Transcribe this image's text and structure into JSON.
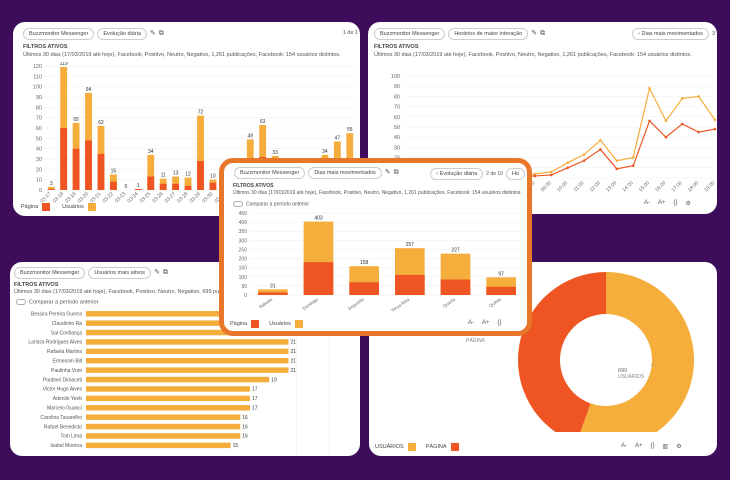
{
  "card1": {
    "app": "Buzzmonitor Messenger",
    "view": "Evolução diária",
    "page": "1 de 1",
    "filters_title": "FILTROS ATIVOS",
    "filters_desc": "Últimos 30 dias (17/03/2019 até hoje), Facebook, Positivo, Neutro, Negativo, 1,261 publicações, Facebook: 154 usuários distintos.",
    "legend": [
      "Página",
      "Usuários"
    ],
    "chart_data": {
      "type": "bar",
      "categories": [
        "03-17",
        "03-18",
        "03-19",
        "03-20",
        "03-21",
        "03-22",
        "03-23",
        "03-24",
        "03-25",
        "03-26",
        "03-27",
        "03-28",
        "03-29",
        "03-30",
        "03-31",
        "04-01",
        "04-02",
        "04-03",
        "04-04",
        "04-05",
        "04-06",
        "04-07",
        "04-08",
        "04-09",
        "04-10"
      ],
      "series": [
        {
          "name": "Página",
          "values": [
            1,
            60,
            40,
            48,
            35,
            8,
            0,
            1,
            13,
            6,
            6,
            4,
            28,
            7,
            4,
            2,
            25,
            32,
            8,
            10,
            5,
            4,
            20,
            10,
            15
          ]
        },
        {
          "name": "Usuários",
          "values": [
            3,
            119,
            65,
            94,
            62,
            15,
            0,
            1,
            34,
            11,
            13,
            12,
            72,
            10,
            5,
            2,
            49,
            63,
            33,
            24,
            23,
            6,
            34,
            47,
            55
          ]
        }
      ],
      "labels": [
        "3",
        "119",
        "65",
        "94",
        "62",
        "15",
        "0",
        "1",
        "34",
        "11",
        "13",
        "12",
        "72",
        "10",
        "5",
        "2",
        "49",
        "63",
        "33",
        "24",
        "23",
        "6",
        "34",
        "47",
        "55"
      ],
      "y_ticks": [
        "0",
        "10",
        "20",
        "30",
        "40",
        "50",
        "60",
        "70",
        "80",
        "90",
        "100",
        "110",
        "120"
      ],
      "ylim": [
        0,
        120
      ]
    }
  },
  "card2": {
    "app": "Buzzmonitor Messenger",
    "view": "Horários de maior interação",
    "nav": "Dias mais movimentados",
    "page": "3",
    "filters_title": "FILTROS ATIVOS",
    "filters_desc": "Últimos 30 dias (17/03/2019 até hoje), Facebook, Positivo, Neutro, Negativo, 1,261 publicações, Facebook: 154 usuários distintos.",
    "chart_data": {
      "type": "line",
      "x": [
        "00:00",
        "01:00",
        "02:00",
        "03:00",
        "04:00",
        "05:00",
        "06:00",
        "07:00",
        "08:00",
        "09:00",
        "10:00",
        "11:00",
        "12:00",
        "13:00",
        "14:00",
        "15:00",
        "16:00",
        "17:00",
        "18:00",
        "19:00"
      ],
      "series": [
        {
          "name": "Usuários",
          "values": [
            2,
            6,
            6,
            5,
            3,
            3,
            3,
            3,
            4,
            6,
            15,
            23,
            37,
            17,
            20,
            88,
            56,
            78,
            80,
            57
          ]
        },
        {
          "name": "Página",
          "values": [
            1,
            4,
            6,
            4,
            2,
            2,
            2,
            2,
            2,
            3,
            10,
            17,
            28,
            9,
            12,
            56,
            40,
            53,
            45,
            48
          ]
        }
      ],
      "y_ticks": [
        "0",
        "10",
        "20",
        "30",
        "40",
        "50",
        "60",
        "70",
        "80",
        "90",
        "100"
      ],
      "ylim": [
        0,
        100
      ]
    },
    "zoom": [
      "A-",
      "A+"
    ]
  },
  "card3": {
    "app": "Buzzmonitor Messenger",
    "view": "Usuários mais ativos",
    "filters_title": "FILTROS ATIVOS",
    "filters_desc": "Últimos 30 dias (17/03/2019 até hoje), Facebook, Positivo, Neutro, Negativo, 699 publicações, Facebook:",
    "compare": "Comparar a período anterior",
    "chart_data": {
      "type": "bar",
      "categories": [
        "Bessira Pereira Guerra",
        "Claudinho Ra",
        "Sai Confiança",
        "Larissa Rodrigues Alves",
        "Rafaela Martins",
        "Ermesom Bill",
        "Paulinha Vum",
        "Pardinei Dimaceti",
        "Victor Hugo Alves",
        "Adenilo Yeeb",
        "Marcelo Guanci",
        "Carolina Tavarelho",
        "Rafael Benedicto",
        "Tom Lima",
        "Isabel Moreira"
      ],
      "values": [
        22,
        22,
        22,
        21,
        21,
        21,
        21,
        19,
        17,
        17,
        17,
        16,
        16,
        16,
        15
      ],
      "labels": [
        "",
        "",
        "",
        "21",
        "21",
        "21",
        "21",
        "19",
        "17",
        "17",
        "17",
        "16",
        "16",
        "16",
        "15"
      ]
    }
  },
  "card4": {
    "zoom": [
      "A-",
      "A+"
    ],
    "legend": [
      "USUÁRIOS",
      "PÁGINA"
    ],
    "chart_data": {
      "type": "pie",
      "labels": [
        "USUÁRIOS",
        "PÁGINA"
      ],
      "values": [
        699,
        562
      ],
      "value_labels": [
        "699",
        ""
      ]
    }
  },
  "card5": {
    "app": "Buzzmonitor Messenger",
    "view": "Dias mais movimentados",
    "nav": "Evolução diária",
    "page": "2 de 10",
    "next": "Ho",
    "filters_title": "FILTROS ATIVOS",
    "filters_desc": "Últimos 30 dias (17/03/2019 até hoje), Facebook, Positivo, Neutro, Negativo, 1,261 publicações, Facebook: 154 usuários distintos.",
    "compare": "Comparar a período anterior",
    "legend": [
      "Página",
      "Usuários"
    ],
    "zoom": [
      "A-",
      "A+"
    ],
    "chart_data": {
      "type": "bar",
      "categories": [
        "Sábado",
        "Domingo",
        "Segunda",
        "Terça-feira",
        "Quarta",
        "Quinta"
      ],
      "series": [
        {
          "name": "Página",
          "values": [
            14,
            180,
            70,
            110,
            85,
            45
          ]
        },
        {
          "name": "Usuários",
          "values": [
            31,
            403,
            158,
            257,
            227,
            97
          ]
        }
      ],
      "labels": [
        "31",
        "403",
        "158",
        "257",
        "227",
        "97"
      ],
      "y_ticks": [
        "0",
        "50",
        "100",
        "150",
        "200",
        "250",
        "300",
        "350",
        "400",
        "450"
      ],
      "ylim": [
        0,
        450
      ]
    },
    "colors": {
      "red": "#ee5522",
      "orange": "#f5ad3c",
      "border": "#e8762b"
    }
  }
}
